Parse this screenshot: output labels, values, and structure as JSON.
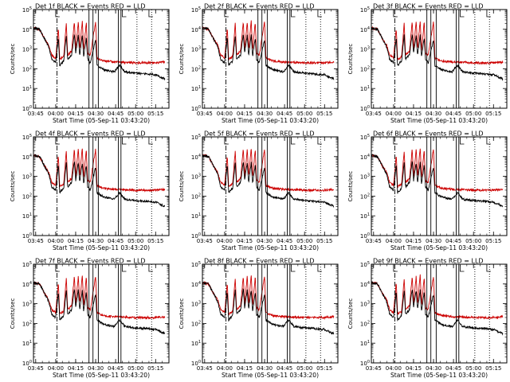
{
  "chart_data": {
    "type": "line",
    "layout": "3x3 grid of panels",
    "yscale": "log",
    "ylim": [
      1,
      100000
    ],
    "ytick_exponents": [
      0,
      1,
      2,
      3,
      4,
      5
    ],
    "ylabel": "Counts/sec",
    "xlabel": "Start Time (05-Sep-11 03:43:20)",
    "xlim": [
      "03:43:20",
      "05:25:00"
    ],
    "xtick_labels": [
      "03:45",
      "04:00",
      "04:15",
      "04:30",
      "04:45",
      "05:00",
      "05:15"
    ],
    "grid": false,
    "colors": {
      "events": "#000000",
      "lld": "#cc0000"
    },
    "series": [
      {
        "name": "Events",
        "color_label": "BLACK"
      },
      {
        "name": "LLD",
        "color_label": "RED"
      }
    ],
    "panels": [
      {
        "title": "Det 1f  BLACK = Events  RED = LLD"
      },
      {
        "title": "Det 2f  BLACK = Events  RED = LLD"
      },
      {
        "title": "Det 3f  BLACK = Events  RED = LLD"
      },
      {
        "title": "Det 4f  BLACK = Events  RED = LLD"
      },
      {
        "title": "Det 5f  BLACK = Events  RED = LLD"
      },
      {
        "title": "Det 6f  BLACK = Events  RED = LLD"
      },
      {
        "title": "Det 7f  BLACK = Events  RED = LLD"
      },
      {
        "title": "Det 8f  BLACK = Events  RED = LLD"
      },
      {
        "title": "Det 9f  BLACK = Events  RED = LLD"
      }
    ],
    "markers": {
      "dashdot_x": [
        "04:01"
      ],
      "solid_x": [
        "04:25",
        "04:28",
        "04:32",
        "04:47",
        "04:49"
      ],
      "dotted_x": [
        "05:01",
        "05:12"
      ],
      "step_markers_x": [
        "04:00",
        "04:50",
        "05:10"
      ]
    },
    "red_lld_profile": [
      {
        "t": "03:43",
        "v": 12000
      },
      {
        "t": "03:48",
        "v": 10000
      },
      {
        "t": "03:52",
        "v": 3000
      },
      {
        "t": "03:55",
        "v": 1500
      },
      {
        "t": "03:57",
        "v": 500
      },
      {
        "t": "04:00",
        "v": 350
      },
      {
        "t": "04:02",
        "v": 12000
      },
      {
        "t": "04:03",
        "v": 300
      },
      {
        "t": "04:06",
        "v": 400
      },
      {
        "t": "04:08",
        "v": 20000
      },
      {
        "t": "04:09",
        "v": 500
      },
      {
        "t": "04:12",
        "v": 800
      },
      {
        "t": "04:14",
        "v": 25000
      },
      {
        "t": "04:15",
        "v": 900
      },
      {
        "t": "04:17",
        "v": 25000
      },
      {
        "t": "04:18",
        "v": 1000
      },
      {
        "t": "04:20",
        "v": 28000
      },
      {
        "t": "04:21",
        "v": 800
      },
      {
        "t": "04:23",
        "v": 25000
      },
      {
        "t": "04:24",
        "v": 600
      },
      {
        "t": "04:26",
        "v": 500
      },
      {
        "t": "04:30",
        "v": 25000
      },
      {
        "t": "04:31",
        "v": 350
      },
      {
        "t": "04:36",
        "v": 250
      },
      {
        "t": "04:45",
        "v": 220
      },
      {
        "t": "05:00",
        "v": 200
      },
      {
        "t": "05:15",
        "v": 200
      },
      {
        "t": "05:22",
        "v": 220
      }
    ],
    "black_events_profile": [
      {
        "t": "03:43",
        "v": 12000
      },
      {
        "t": "03:48",
        "v": 10000
      },
      {
        "t": "03:52",
        "v": 3000
      },
      {
        "t": "03:55",
        "v": 1200
      },
      {
        "t": "03:57",
        "v": 300
      },
      {
        "t": "04:00",
        "v": 200
      },
      {
        "t": "04:02",
        "v": 4000
      },
      {
        "t": "04:03",
        "v": 150
      },
      {
        "t": "04:06",
        "v": 250
      },
      {
        "t": "04:08",
        "v": 5000
      },
      {
        "t": "04:09",
        "v": 300
      },
      {
        "t": "04:12",
        "v": 500
      },
      {
        "t": "04:14",
        "v": 6000
      },
      {
        "t": "04:15",
        "v": 600
      },
      {
        "t": "04:17",
        "v": 5000
      },
      {
        "t": "04:18",
        "v": 500
      },
      {
        "t": "04:20",
        "v": 5000
      },
      {
        "t": "04:21",
        "v": 400
      },
      {
        "t": "04:23",
        "v": 4000
      },
      {
        "t": "04:24",
        "v": 300
      },
      {
        "t": "04:26",
        "v": 200
      },
      {
        "t": "04:30",
        "v": 3000
      },
      {
        "t": "04:31",
        "v": 150
      },
      {
        "t": "04:36",
        "v": 90
      },
      {
        "t": "04:44",
        "v": 70
      },
      {
        "t": "04:48",
        "v": 150
      },
      {
        "t": "04:52",
        "v": 70
      },
      {
        "t": "05:00",
        "v": 60
      },
      {
        "t": "05:15",
        "v": 50
      },
      {
        "t": "05:22",
        "v": 30
      }
    ]
  }
}
